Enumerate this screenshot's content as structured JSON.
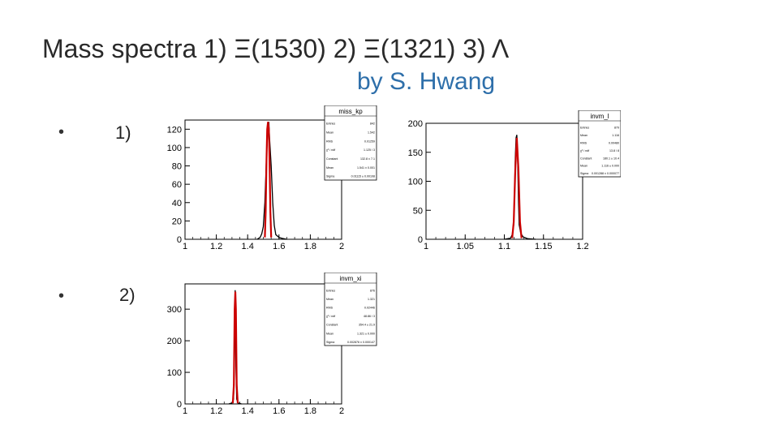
{
  "slide": {
    "title": "Mass spectra 1) Ξ(1530) 2) Ξ(1321) 3) Λ",
    "subtitle": "by S. Hwang",
    "bullets": [
      {
        "symbol": "•",
        "label": "1)"
      },
      {
        "symbol": "•",
        "label": "2)"
      }
    ]
  },
  "colors": {
    "histogram": "#000000",
    "fit": "#cc0000",
    "subtitle": "#2e6faa"
  },
  "chart_data": [
    {
      "type": "line",
      "title": "miss_kp",
      "xlim": [
        1,
        2
      ],
      "ylim": [
        0,
        130
      ],
      "xticks": [
        "1",
        "1.2",
        "1.4",
        "1.6",
        "1.8",
        "2"
      ],
      "yticks": [
        "0",
        "20",
        "40",
        "60",
        "80",
        "100",
        "120"
      ],
      "stats": [
        {
          "label": "Entries",
          "value": "842"
        },
        {
          "label": "Mean",
          "value": "1.542"
        },
        {
          "label": "RMS",
          "value": "0.01259"
        },
        {
          "label": "χ² / ndf",
          "value": "1.125 / 3"
        },
        {
          "label": "Constant",
          "value": "132.8 ± 7.1"
        },
        {
          "label": "Mean",
          "value": "1.541 ± 0.001"
        },
        {
          "label": "Sigma",
          "value": "0.01115 ± 0.00108"
        }
      ],
      "series": [
        {
          "values": [
            [
              1.46,
              0
            ],
            [
              1.48,
              2
            ],
            [
              1.49,
              6
            ],
            [
              1.5,
              14
            ],
            [
              1.51,
              40
            ],
            [
              1.52,
              90
            ],
            [
              1.53,
              125
            ],
            [
              1.535,
              128
            ],
            [
              1.54,
              110
            ],
            [
              1.55,
              80
            ],
            [
              1.56,
              40
            ],
            [
              1.57,
              15
            ],
            [
              1.58,
              5
            ],
            [
              1.6,
              2
            ],
            [
              1.62,
              1
            ],
            [
              1.65,
              0
            ]
          ]
        },
        {
          "values": [
            [
              1.51,
              2
            ],
            [
              1.515,
              30
            ],
            [
              1.52,
              85
            ],
            [
              1.525,
              120
            ],
            [
              1.53,
              128
            ],
            [
              1.535,
              120
            ],
            [
              1.54,
              85
            ],
            [
              1.545,
              30
            ],
            [
              1.55,
              2
            ]
          ]
        }
      ]
    },
    {
      "type": "line",
      "title": "invm_l",
      "xlim": [
        1,
        1.2
      ],
      "ylim": [
        0,
        200
      ],
      "xticks": [
        "1",
        "1.05",
        "1.1",
        "1.15",
        "1.2"
      ],
      "yticks": [
        "0",
        "50",
        "100",
        "150",
        "200"
      ],
      "stats": [
        {
          "label": "Entries",
          "value": "879"
        },
        {
          "label": "Mean",
          "value": "1.116"
        },
        {
          "label": "RMS",
          "value": "0.00480"
        },
        {
          "label": "χ² / ndf",
          "value": "13.8 / 8"
        },
        {
          "label": "Constant",
          "value": "180.1 ± 10.4"
        },
        {
          "label": "Mean",
          "value": "1.116 ± 0.000"
        },
        {
          "label": "Sigma",
          "value": "0.001288 ± 0.000077"
        }
      ],
      "series": [
        {
          "values": [
            [
              1.1,
              0
            ],
            [
              1.108,
              2
            ],
            [
              1.11,
              8
            ],
            [
              1.112,
              25
            ],
            [
              1.113,
              70
            ],
            [
              1.114,
              140
            ],
            [
              1.115,
              175
            ],
            [
              1.116,
              180
            ],
            [
              1.117,
              140
            ],
            [
              1.118,
              70
            ],
            [
              1.119,
              25
            ],
            [
              1.121,
              10
            ],
            [
              1.124,
              4
            ],
            [
              1.13,
              1
            ],
            [
              1.14,
              0
            ]
          ]
        },
        {
          "values": [
            [
              1.11,
              2
            ],
            [
              1.112,
              30
            ],
            [
              1.114,
              120
            ],
            [
              1.116,
              175
            ],
            [
              1.118,
              120
            ],
            [
              1.12,
              30
            ],
            [
              1.122,
              2
            ]
          ]
        }
      ]
    },
    {
      "type": "line",
      "title": "invm_xi",
      "xlim": [
        1,
        2
      ],
      "ylim": [
        0,
        380
      ],
      "xticks": [
        "1",
        "1.2",
        "1.4",
        "1.6",
        "1.8",
        "2"
      ],
      "yticks": [
        "0",
        "100",
        "200",
        "300"
      ],
      "stats": [
        {
          "label": "Entries",
          "value": "876"
        },
        {
          "label": "Mean",
          "value": "1.321"
        },
        {
          "label": "RMS",
          "value": "0.02446"
        },
        {
          "label": "χ² / ndf",
          "value": "48.86 / 3"
        },
        {
          "label": "Constant",
          "value": "354.4 ± 21.9"
        },
        {
          "label": "Mean",
          "value": "1.321 ± 0.000"
        },
        {
          "label": "Sigma",
          "value": "0.002876 ± 0.000147"
        }
      ],
      "series": [
        {
          "values": [
            [
              1.28,
              0
            ],
            [
              1.3,
              3
            ],
            [
              1.31,
              15
            ],
            [
              1.315,
              120
            ],
            [
              1.32,
              360
            ],
            [
              1.325,
              120
            ],
            [
              1.33,
              15
            ],
            [
              1.34,
              3
            ],
            [
              1.36,
              0
            ]
          ]
        },
        {
          "values": [
            [
              1.305,
              2
            ],
            [
              1.312,
              60
            ],
            [
              1.317,
              300
            ],
            [
              1.321,
              355
            ],
            [
              1.325,
              300
            ],
            [
              1.33,
              60
            ],
            [
              1.337,
              2
            ]
          ]
        }
      ]
    }
  ]
}
